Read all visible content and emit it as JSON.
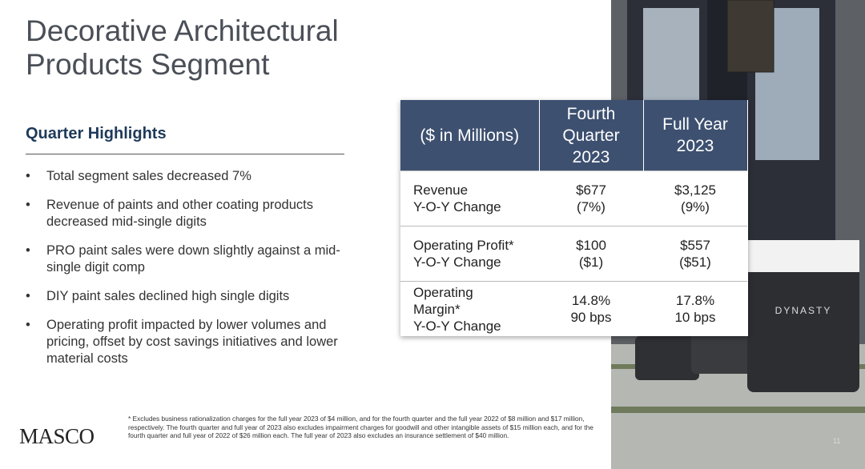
{
  "title": [
    "Decorative Architectural",
    "Products Segment"
  ],
  "highlights": {
    "heading": "Quarter Highlights",
    "items": [
      "Total segment sales decreased 7%",
      "Revenue of paints and other coating products decreased mid-single digits",
      "PRO paint sales were down slightly against a mid-single digit comp",
      "DIY paint sales declined high single digits",
      "Operating profit impacted by lower volumes and pricing, offset by cost savings initiatives and lower material costs"
    ]
  },
  "table": {
    "header": [
      "($ in Millions)",
      "Fourth Quarter 2023",
      "Full Year 2023"
    ],
    "rows": [
      {
        "label": [
          "Revenue"
        ],
        "change_label": "Y-O-Y Change",
        "fourth_quarter": [
          "$677",
          "(7%)"
        ],
        "full_year": [
          "$3,125",
          "(9%)"
        ]
      },
      {
        "label": [
          "Operating Profit*"
        ],
        "change_label": "Y-O-Y Change",
        "fourth_quarter": [
          "$100",
          "($1)"
        ],
        "full_year": [
          "$557",
          "($51)"
        ]
      },
      {
        "label": [
          "Operating",
          "Margin*"
        ],
        "change_label": "Y-O-Y Change",
        "fourth_quarter": [
          "14.8%",
          "90 bps"
        ],
        "full_year": [
          "17.8%",
          "10 bps"
        ]
      }
    ]
  },
  "footnote": "* Excludes business rationalization charges for the full year 2023 of $4 million, and for the fourth quarter and the full year 2022 of $8 million and $17 million, respectively. The fourth quarter and full year of 2023 also excludes impairment charges for goodwill and other intangible assets of $15 million each, and for the fourth quarter and full year of 2022 of $26 million each. The full year of 2023 also excludes an insurance settlement of $40 million.",
  "logo": "MASCO",
  "page_number": "11"
}
